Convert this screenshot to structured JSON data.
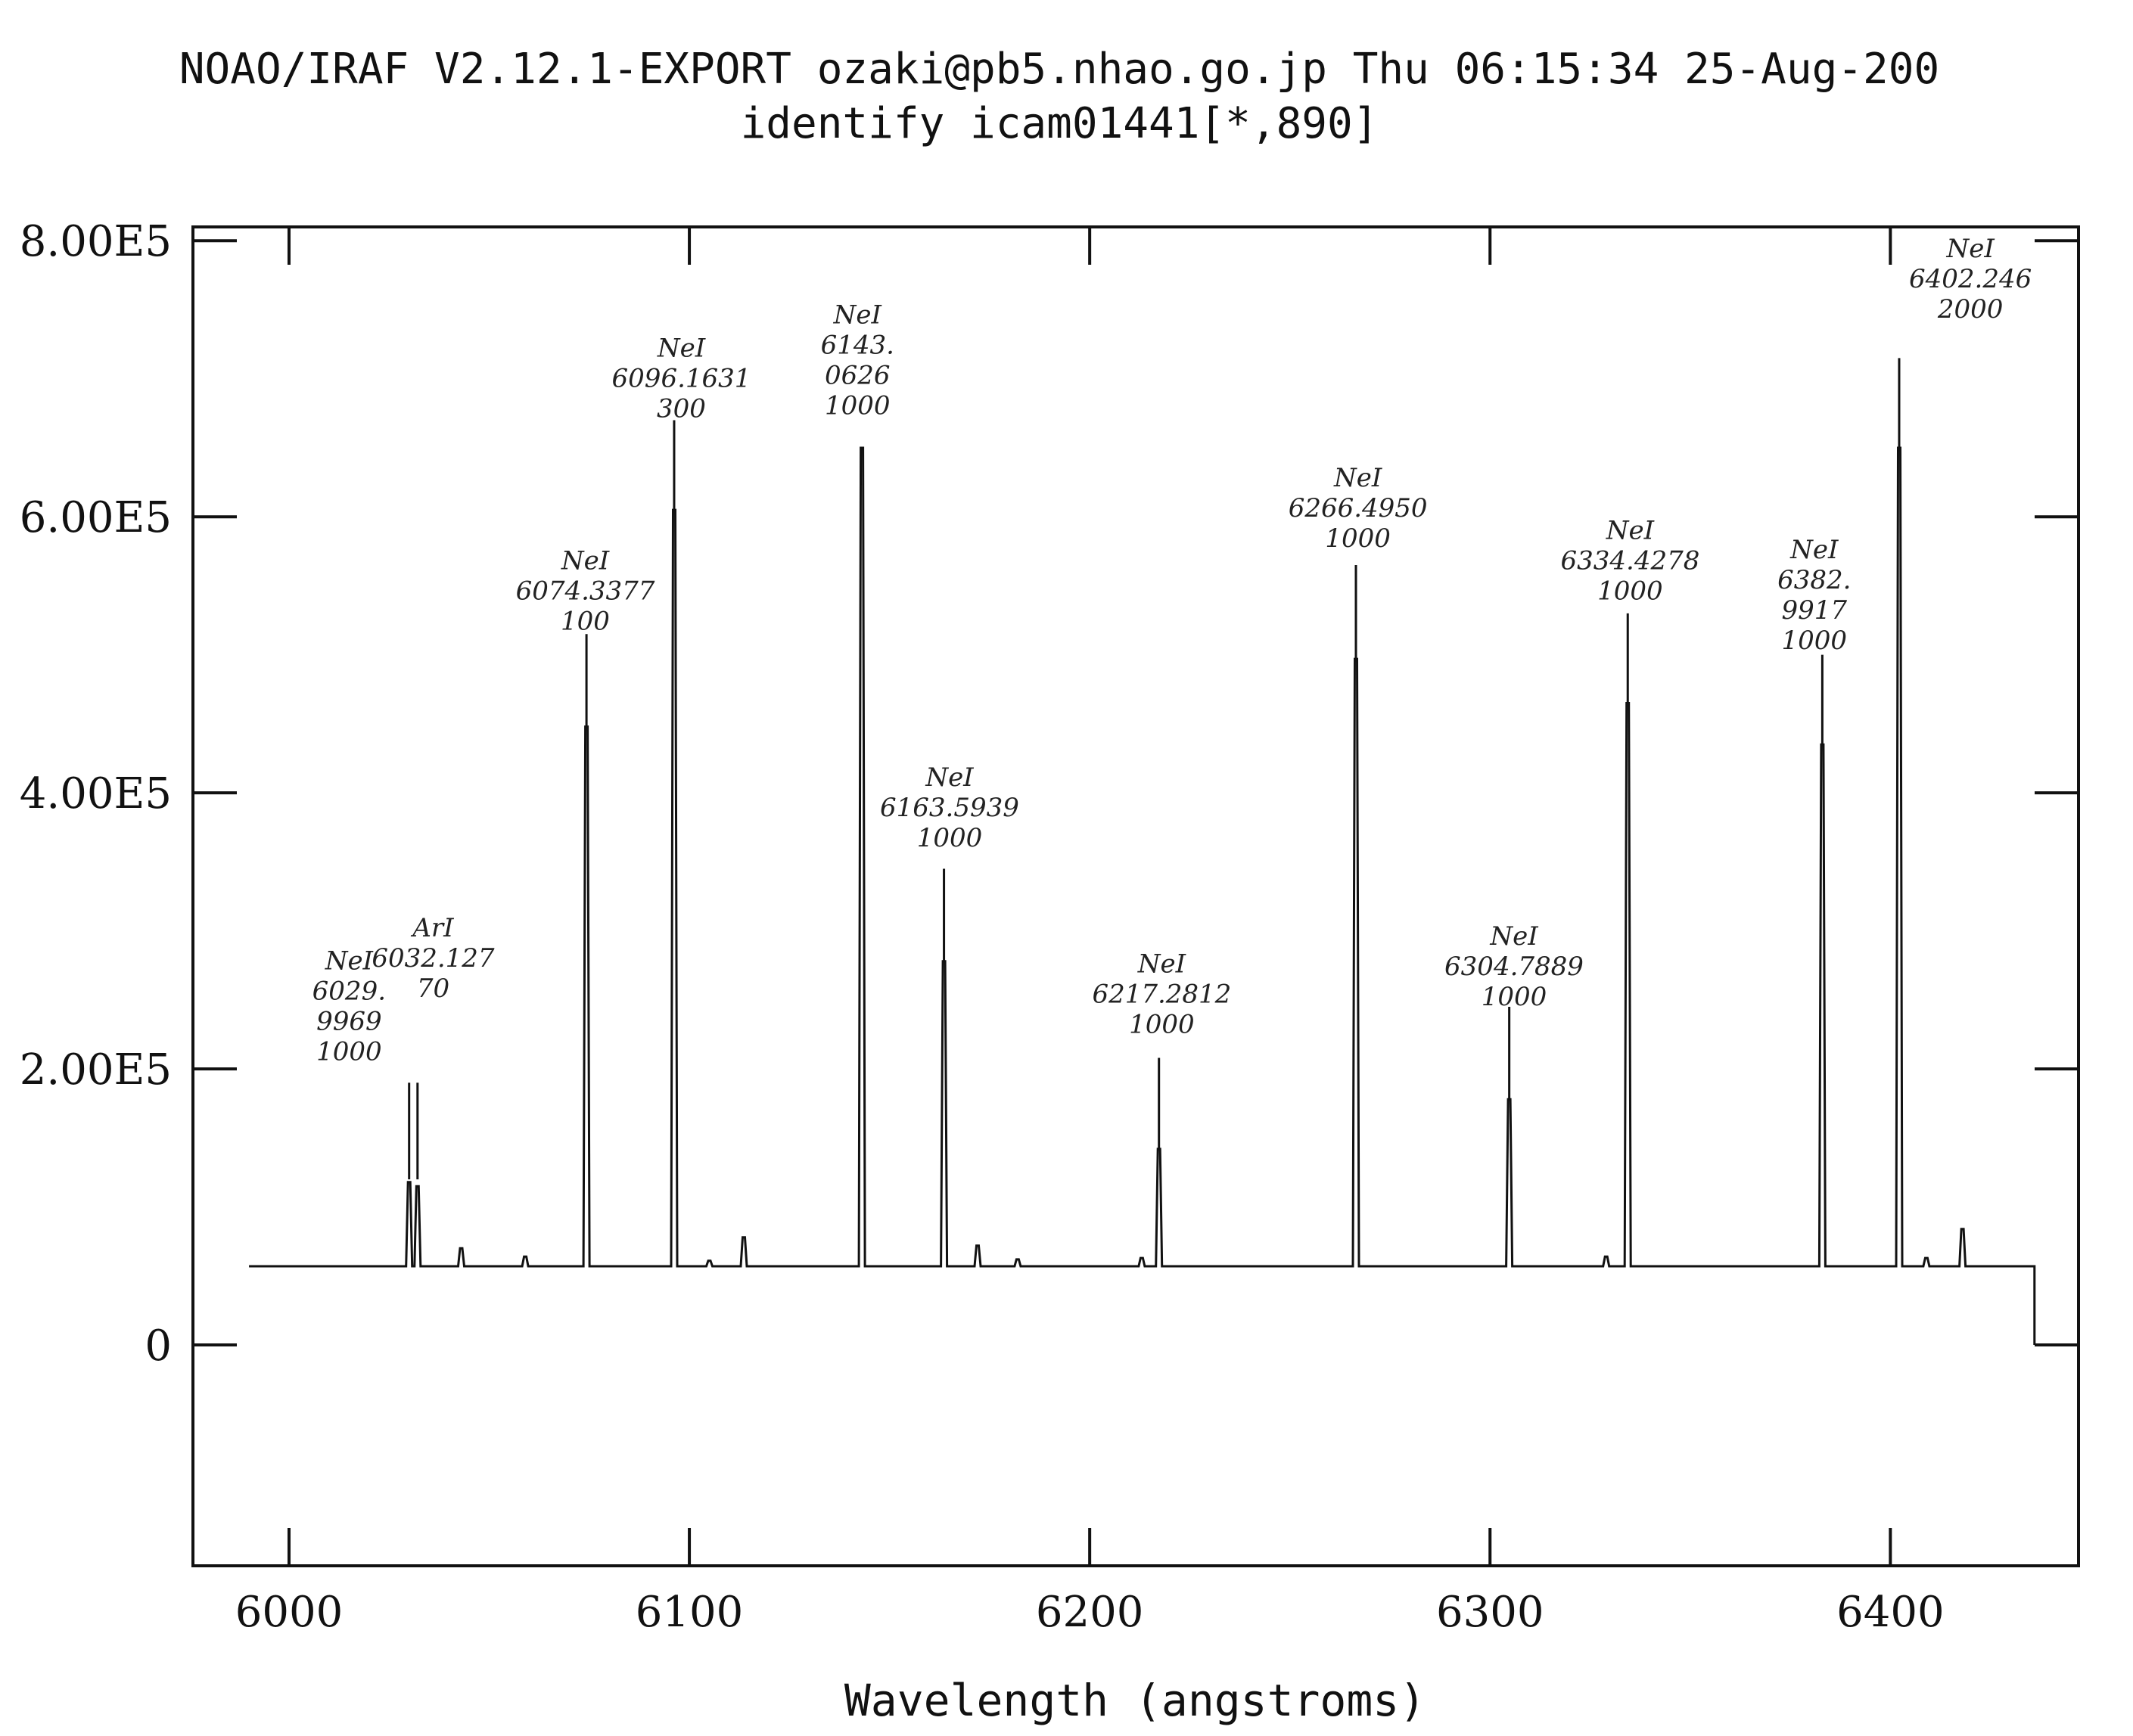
{
  "chart_data": {
    "type": "line",
    "title": "NOAO/IRAF V2.12.1-EXPORT ozaki@pb5.nhao.go.jp Thu 06:15:34 25-Aug-200",
    "subtitle": "identify icam01441[*,890]",
    "xlabel": "Wavelength (angstroms)",
    "ylabel": "",
    "xlim": [
      5976,
      6447
    ],
    "ylim": [
      -160000,
      810000
    ],
    "x_ticks": [
      6000,
      6100,
      6200,
      6300,
      6400
    ],
    "x_tick_labels": [
      "6000",
      "6100",
      "6200",
      "6300",
      "6400"
    ],
    "y_ticks": [
      0,
      200000,
      400000,
      600000,
      800000
    ],
    "y_tick_labels": [
      "0",
      "2.00E5",
      "4.00E5",
      "6.00E5",
      "8.00E5"
    ],
    "grid": false,
    "spectrum": {
      "x_start": 5990,
      "x_end": 6436,
      "continuum": 57000,
      "end_drop": 0,
      "peaks": [
        {
          "x": 6030.0,
          "y": 118000
        },
        {
          "x": 6032.1,
          "y": 115000
        },
        {
          "x": 6043.0,
          "y": 70000
        },
        {
          "x": 6059.0,
          "y": 64000
        },
        {
          "x": 6074.3,
          "y": 448000
        },
        {
          "x": 6096.2,
          "y": 605000
        },
        {
          "x": 6105.0,
          "y": 61000
        },
        {
          "x": 6113.6,
          "y": 78000
        },
        {
          "x": 6143.1,
          "y": 650000
        },
        {
          "x": 6163.6,
          "y": 278000
        },
        {
          "x": 6172.0,
          "y": 72000
        },
        {
          "x": 6182.0,
          "y": 62000
        },
        {
          "x": 6213.0,
          "y": 63000
        },
        {
          "x": 6217.3,
          "y": 142000
        },
        {
          "x": 6266.5,
          "y": 497000
        },
        {
          "x": 6304.8,
          "y": 178000
        },
        {
          "x": 6329.0,
          "y": 64000
        },
        {
          "x": 6334.4,
          "y": 465000
        },
        {
          "x": 6383.0,
          "y": 435000
        },
        {
          "x": 6402.2,
          "y": 650000
        },
        {
          "x": 6409.0,
          "y": 63000
        },
        {
          "x": 6418.0,
          "y": 84000
        }
      ]
    },
    "identified_lines": [
      {
        "x": 6030.0,
        "y1": 190000,
        "y2": 120000,
        "lines": [
          "NeI",
          "6029.",
          "9969",
          "1000"
        ],
        "label_x": 6015,
        "label_y": 272000
      },
      {
        "x": 6032.1,
        "y1": 190000,
        "y2": 120000,
        "lines": [
          "ArI",
          "6032.127",
          "70"
        ],
        "label_x": 6036,
        "label_y": 296000
      },
      {
        "x": 6074.3,
        "y1": 515000,
        "y2": 448000,
        "lines": [
          "NeI",
          "6074.3377",
          "100"
        ],
        "label_x": 6074,
        "label_y": 562000
      },
      {
        "x": 6096.2,
        "y1": 670000,
        "y2": 605000,
        "lines": [
          "NeI",
          "6096.1631",
          "300"
        ],
        "label_x": 6098,
        "label_y": 716000
      },
      {
        "x": 6143.1,
        "y1": 650000,
        "y2": 650000,
        "lines": [
          "NeI",
          "6143.",
          "0626",
          "1000"
        ],
        "label_x": 6142,
        "label_y": 740000
      },
      {
        "x": 6163.6,
        "y1": 345000,
        "y2": 278000,
        "lines": [
          "NeI",
          "6163.5939",
          "1000"
        ],
        "label_x": 6165,
        "label_y": 405000
      },
      {
        "x": 6217.3,
        "y1": 208000,
        "y2": 142000,
        "lines": [
          "NeI",
          "6217.2812",
          "1000"
        ],
        "label_x": 6218,
        "label_y": 270000
      },
      {
        "x": 6266.5,
        "y1": 565000,
        "y2": 497000,
        "lines": [
          "NeI",
          "6266.4950",
          "1000"
        ],
        "label_x": 6267,
        "label_y": 622000
      },
      {
        "x": 6304.8,
        "y1": 245000,
        "y2": 178000,
        "lines": [
          "NeI",
          "6304.7889",
          "1000"
        ],
        "label_x": 6306,
        "label_y": 290000
      },
      {
        "x": 6334.4,
        "y1": 530000,
        "y2": 465000,
        "lines": [
          "NeI",
          "6334.4278",
          "1000"
        ],
        "label_x": 6335,
        "label_y": 584000
      },
      {
        "x": 6383.0,
        "y1": 500000,
        "y2": 435000,
        "lines": [
          "NeI",
          "6382.",
          "9917",
          "1000"
        ],
        "label_x": 6381,
        "label_y": 570000
      },
      {
        "x": 6402.2,
        "y1": 715000,
        "y2": 650000,
        "lines": [
          "NeI",
          "6402.246",
          "2000"
        ],
        "label_x": 6420,
        "label_y": 788000
      }
    ]
  }
}
